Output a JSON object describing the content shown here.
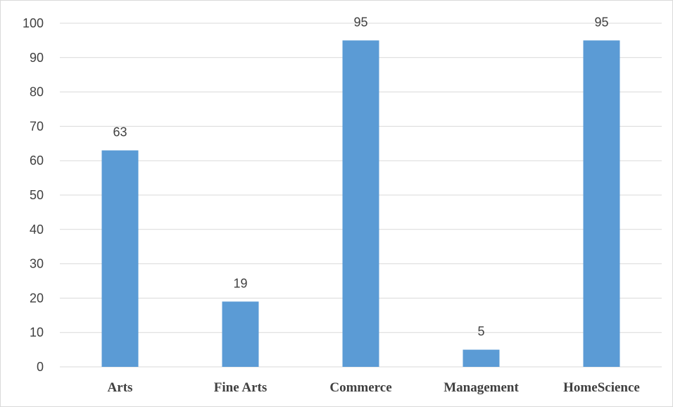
{
  "chart_data": {
    "type": "bar",
    "title": "",
    "xlabel": "",
    "ylabel": "",
    "categories": [
      "Arts",
      "Fine Arts",
      "Commerce",
      "Management",
      "HomeScience"
    ],
    "values": [
      63,
      19,
      95,
      5,
      95
    ],
    "ylim": [
      0,
      100
    ],
    "yticks": [
      0,
      10,
      20,
      30,
      40,
      50,
      60,
      70,
      80,
      90,
      100
    ],
    "grid": true,
    "legend": "none",
    "bar_color": "#5b9bd5",
    "data_labels": true
  }
}
